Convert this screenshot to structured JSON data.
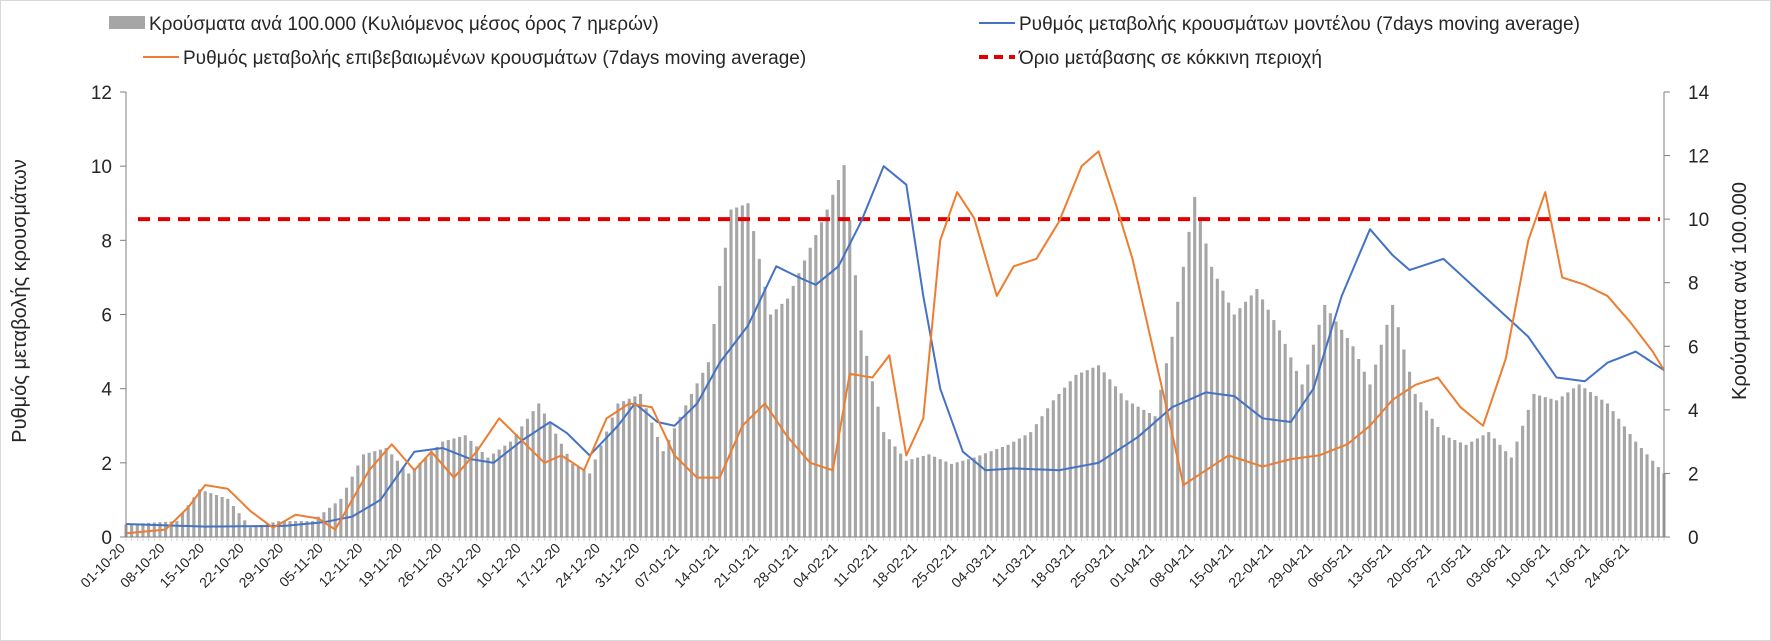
{
  "chart_data": {
    "type": "bar+line",
    "title": "",
    "xlabel": "",
    "ylabel_left": "Ρυθμός μεταβολής κρουσμάτων",
    "ylabel_right": "Κρούσματα ανά 100.000",
    "ylim_left": [
      0,
      12
    ],
    "ylim_right": [
      0,
      14
    ],
    "yticks_left": [
      "0",
      "2",
      "4",
      "6",
      "8",
      "10",
      "12"
    ],
    "yticks_right": [
      "0",
      "2",
      "4",
      "6",
      "8",
      "10",
      "12",
      "14"
    ],
    "grid": false,
    "legend_placement": "top",
    "x_start": "2020-10-01",
    "x_end": "2021-06-30",
    "x_tick_labels": [
      "01-10-20",
      "08-10-20",
      "15-10-20",
      "22-10-20",
      "29-10-20",
      "05-11-20",
      "12-11-20",
      "19-11-20",
      "26-11-20",
      "03-12-20",
      "10-12-20",
      "17-12-20",
      "24-12-20",
      "31-12-20",
      "07-01-21",
      "14-01-21",
      "21-01-21",
      "28-01-21",
      "04-02-21",
      "11-02-21",
      "18-02-21",
      "25-02-21",
      "04-03-21",
      "11-03-21",
      "18-03-21",
      "25-03-21",
      "01-04-21",
      "08-04-21",
      "15-04-21",
      "22-04-21",
      "29-04-21",
      "06-05-21",
      "13-05-21",
      "20-05-21",
      "27-05-21",
      "03-06-21",
      "10-06-21",
      "17-06-21",
      "24-06-21"
    ],
    "series": [
      {
        "name": "Κρούσματα ανά 100.000 (Κυλιόμενος μέσος όρος 7 ημερών)",
        "kind": "bar",
        "axis": "right",
        "color": "#a6a6a6",
        "keypoints": [
          [
            "2020-10-01",
            0.4
          ],
          [
            "2020-10-10",
            0.5
          ],
          [
            "2020-10-14",
            1.5
          ],
          [
            "2020-10-19",
            1.2
          ],
          [
            "2020-10-23",
            0.3
          ],
          [
            "2020-10-28",
            0.5
          ],
          [
            "2020-11-03",
            0.5
          ],
          [
            "2020-11-08",
            1.2
          ],
          [
            "2020-11-12",
            2.6
          ],
          [
            "2020-11-16",
            2.8
          ],
          [
            "2020-11-20",
            2.0
          ],
          [
            "2020-11-26",
            3.0
          ],
          [
            "2020-11-30",
            3.2
          ],
          [
            "2020-12-04",
            2.5
          ],
          [
            "2020-12-08",
            3.0
          ],
          [
            "2020-12-13",
            4.2
          ],
          [
            "2020-12-19",
            2.3
          ],
          [
            "2020-12-22",
            2.0
          ],
          [
            "2020-12-27",
            4.2
          ],
          [
            "2020-12-31",
            4.5
          ],
          [
            "2021-01-04",
            2.7
          ],
          [
            "2021-01-09",
            4.5
          ],
          [
            "2021-01-12",
            5.5
          ],
          [
            "2021-01-16",
            10.3
          ],
          [
            "2021-01-19",
            10.5
          ],
          [
            "2021-01-23",
            7.0
          ],
          [
            "2021-01-26",
            7.5
          ],
          [
            "2021-01-29",
            8.7
          ],
          [
            "2021-02-02",
            10.3
          ],
          [
            "2021-02-05",
            11.7
          ],
          [
            "2021-02-08",
            6.5
          ],
          [
            "2021-02-12",
            3.3
          ],
          [
            "2021-02-16",
            2.4
          ],
          [
            "2021-02-20",
            2.6
          ],
          [
            "2021-02-24",
            2.3
          ],
          [
            "2021-02-28",
            2.5
          ],
          [
            "2021-03-03",
            2.7
          ],
          [
            "2021-03-06",
            2.9
          ],
          [
            "2021-03-10",
            3.3
          ],
          [
            "2021-03-14",
            4.3
          ],
          [
            "2021-03-18",
            5.1
          ],
          [
            "2021-03-22",
            5.4
          ],
          [
            "2021-03-27",
            4.3
          ],
          [
            "2021-04-01",
            3.8
          ],
          [
            "2021-04-04",
            6.3
          ],
          [
            "2021-04-08",
            10.7
          ],
          [
            "2021-04-11",
            8.5
          ],
          [
            "2021-04-15",
            7.0
          ],
          [
            "2021-04-19",
            7.8
          ],
          [
            "2021-04-23",
            6.5
          ],
          [
            "2021-04-27",
            4.8
          ],
          [
            "2021-05-01",
            7.3
          ],
          [
            "2021-05-06",
            6.0
          ],
          [
            "2021-05-09",
            4.8
          ],
          [
            "2021-05-13",
            7.3
          ],
          [
            "2021-05-17",
            4.5
          ],
          [
            "2021-05-22",
            3.2
          ],
          [
            "2021-05-26",
            2.9
          ],
          [
            "2021-05-30",
            3.3
          ],
          [
            "2021-06-03",
            2.5
          ],
          [
            "2021-06-07",
            4.5
          ],
          [
            "2021-06-11",
            4.3
          ],
          [
            "2021-06-15",
            4.8
          ],
          [
            "2021-06-20",
            4.2
          ],
          [
            "2021-06-25",
            3.0
          ],
          [
            "2021-06-30",
            2.0
          ]
        ]
      },
      {
        "name": "Ρυθμός μεταβολής κρουσμάτων μοντέλου (7days moving average)",
        "kind": "line",
        "axis": "left",
        "color": "#4472c4",
        "keypoints": [
          [
            "2020-10-01",
            0.35
          ],
          [
            "2020-10-15",
            0.28
          ],
          [
            "2020-10-29",
            0.3
          ],
          [
            "2020-11-05",
            0.4
          ],
          [
            "2020-11-10",
            0.55
          ],
          [
            "2020-11-15",
            1.0
          ],
          [
            "2020-11-21",
            2.3
          ],
          [
            "2020-11-26",
            2.4
          ],
          [
            "2020-12-01",
            2.1
          ],
          [
            "2020-12-05",
            2.0
          ],
          [
            "2020-12-10",
            2.6
          ],
          [
            "2020-12-15",
            3.1
          ],
          [
            "2020-12-18",
            2.8
          ],
          [
            "2020-12-22",
            2.2
          ],
          [
            "2020-12-27",
            3.0
          ],
          [
            "2020-12-30",
            3.6
          ],
          [
            "2021-01-03",
            3.1
          ],
          [
            "2021-01-06",
            3.0
          ],
          [
            "2021-01-10",
            3.6
          ],
          [
            "2021-01-14",
            4.7
          ],
          [
            "2021-01-19",
            5.7
          ],
          [
            "2021-01-24",
            7.3
          ],
          [
            "2021-01-28",
            7.0
          ],
          [
            "2021-01-31",
            6.8
          ],
          [
            "2021-02-04",
            7.3
          ],
          [
            "2021-02-08",
            8.5
          ],
          [
            "2021-02-12",
            10.0
          ],
          [
            "2021-02-16",
            9.5
          ],
          [
            "2021-02-19",
            6.5
          ],
          [
            "2021-02-22",
            4.0
          ],
          [
            "2021-02-26",
            2.3
          ],
          [
            "2021-03-02",
            1.8
          ],
          [
            "2021-03-07",
            1.85
          ],
          [
            "2021-03-15",
            1.8
          ],
          [
            "2021-03-22",
            2.0
          ],
          [
            "2021-03-29",
            2.7
          ],
          [
            "2021-04-04",
            3.5
          ],
          [
            "2021-04-10",
            3.9
          ],
          [
            "2021-04-15",
            3.8
          ],
          [
            "2021-04-20",
            3.2
          ],
          [
            "2021-04-25",
            3.1
          ],
          [
            "2021-04-29",
            4.0
          ],
          [
            "2021-05-04",
            6.5
          ],
          [
            "2021-05-09",
            8.3
          ],
          [
            "2021-05-13",
            7.6
          ],
          [
            "2021-05-16",
            7.2
          ],
          [
            "2021-05-22",
            7.5
          ],
          [
            "2021-05-27",
            6.8
          ],
          [
            "2021-06-01",
            6.1
          ],
          [
            "2021-06-06",
            5.4
          ],
          [
            "2021-06-11",
            4.3
          ],
          [
            "2021-06-16",
            4.2
          ],
          [
            "2021-06-20",
            4.7
          ],
          [
            "2021-06-25",
            5.0
          ],
          [
            "2021-06-30",
            4.5
          ]
        ]
      },
      {
        "name": "Ρυθμός μεταβολής επιβεβαιωμένων κρουσμάτων (7days moving average)",
        "kind": "line",
        "axis": "left",
        "color": "#ed7d31",
        "keypoints": [
          [
            "2020-10-01",
            0.1
          ],
          [
            "2020-10-08",
            0.2
          ],
          [
            "2020-10-12",
            0.8
          ],
          [
            "2020-10-15",
            1.4
          ],
          [
            "2020-10-19",
            1.3
          ],
          [
            "2020-10-23",
            0.7
          ],
          [
            "2020-10-27",
            0.25
          ],
          [
            "2020-10-31",
            0.6
          ],
          [
            "2020-11-04",
            0.5
          ],
          [
            "2020-11-07",
            0.2
          ],
          [
            "2020-11-10",
            1.0
          ],
          [
            "2020-11-13",
            1.8
          ],
          [
            "2020-11-17",
            2.5
          ],
          [
            "2020-11-21",
            1.8
          ],
          [
            "2020-11-24",
            2.3
          ],
          [
            "2020-11-28",
            1.6
          ],
          [
            "2020-12-02",
            2.3
          ],
          [
            "2020-12-06",
            3.2
          ],
          [
            "2020-12-10",
            2.6
          ],
          [
            "2020-12-14",
            2.0
          ],
          [
            "2020-12-17",
            2.2
          ],
          [
            "2020-12-21",
            1.8
          ],
          [
            "2020-12-25",
            3.2
          ],
          [
            "2020-12-29",
            3.6
          ],
          [
            "2021-01-02",
            3.5
          ],
          [
            "2021-01-06",
            2.2
          ],
          [
            "2021-01-10",
            1.6
          ],
          [
            "2021-01-14",
            1.6
          ],
          [
            "2021-01-18",
            3.0
          ],
          [
            "2021-01-22",
            3.6
          ],
          [
            "2021-01-26",
            2.7
          ],
          [
            "2021-01-30",
            2.0
          ],
          [
            "2021-02-03",
            1.8
          ],
          [
            "2021-02-06",
            4.4
          ],
          [
            "2021-02-10",
            4.3
          ],
          [
            "2021-02-13",
            4.9
          ],
          [
            "2021-02-16",
            2.2
          ],
          [
            "2021-02-19",
            3.2
          ],
          [
            "2021-02-22",
            8.0
          ],
          [
            "2021-02-25",
            9.3
          ],
          [
            "2021-02-28",
            8.6
          ],
          [
            "2021-03-04",
            6.5
          ],
          [
            "2021-03-07",
            7.3
          ],
          [
            "2021-03-11",
            7.5
          ],
          [
            "2021-03-15",
            8.5
          ],
          [
            "2021-03-19",
            10.0
          ],
          [
            "2021-03-22",
            10.4
          ],
          [
            "2021-03-25",
            9.0
          ],
          [
            "2021-03-28",
            7.5
          ],
          [
            "2021-03-31",
            5.5
          ],
          [
            "2021-04-03",
            3.5
          ],
          [
            "2021-04-06",
            1.4
          ],
          [
            "2021-04-10",
            1.8
          ],
          [
            "2021-04-14",
            2.2
          ],
          [
            "2021-04-20",
            1.9
          ],
          [
            "2021-04-25",
            2.1
          ],
          [
            "2021-04-30",
            2.2
          ],
          [
            "2021-05-05",
            2.5
          ],
          [
            "2021-05-09",
            3.0
          ],
          [
            "2021-05-13",
            3.7
          ],
          [
            "2021-05-17",
            4.1
          ],
          [
            "2021-05-21",
            4.3
          ],
          [
            "2021-05-25",
            3.5
          ],
          [
            "2021-05-29",
            3.0
          ],
          [
            "2021-06-02",
            4.8
          ],
          [
            "2021-06-06",
            8.0
          ],
          [
            "2021-06-09",
            9.3
          ],
          [
            "2021-06-12",
            7.0
          ],
          [
            "2021-06-16",
            6.8
          ],
          [
            "2021-06-20",
            6.5
          ],
          [
            "2021-06-24",
            5.8
          ],
          [
            "2021-06-28",
            5.0
          ],
          [
            "2021-06-30",
            4.5
          ]
        ]
      },
      {
        "name": "Όριο μετάβασης σε κόκκινη περιοχή",
        "kind": "threshold",
        "axis": "right",
        "color": "#e00000",
        "value": 10
      }
    ]
  }
}
